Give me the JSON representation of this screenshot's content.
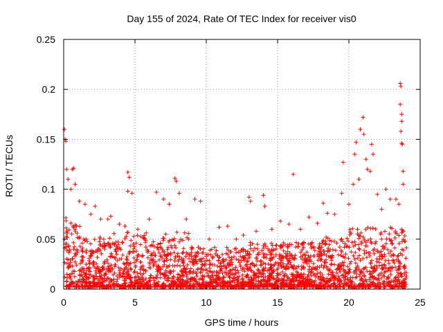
{
  "chart_data": {
    "type": "scatter",
    "title": "Day 155 of 2024, Rate Of TEC Index for receiver vis0",
    "xlabel": "GPS time / hours",
    "ylabel": "ROTI / TECUs",
    "xlim": [
      0,
      25
    ],
    "ylim": [
      0,
      0.25
    ],
    "x_ticks": [
      0,
      5,
      10,
      15,
      20,
      25
    ],
    "x_tick_labels": [
      "0",
      "5",
      "10",
      "15",
      "20",
      "25"
    ],
    "y_ticks": [
      0,
      0.05,
      0.1,
      0.15,
      0.2,
      0.25
    ],
    "y_tick_labels": [
      "0",
      "0.05",
      "0.1",
      "0.15",
      "0.2",
      "0.25"
    ],
    "grid": true,
    "marker": "+",
    "series_color": "#ff0000",
    "series": [
      {
        "name": "ROTI",
        "note": "dense cloud of ~thousands of points mostly below 0.05 TECU/min; representative peaks listed",
        "points": [
          [
            0.05,
            0.16
          ],
          [
            0.1,
            0.15
          ],
          [
            0.15,
            0.148
          ],
          [
            0.2,
            0.12
          ],
          [
            0.3,
            0.11
          ],
          [
            0.5,
            0.1
          ],
          [
            0.6,
            0.12
          ],
          [
            0.7,
            0.121
          ],
          [
            0.8,
            0.105
          ],
          [
            1.1,
            0.088
          ],
          [
            1.5,
            0.085
          ],
          [
            1.9,
            0.075
          ],
          [
            2.2,
            0.083
          ],
          [
            2.6,
            0.07
          ],
          [
            3.1,
            0.07
          ],
          [
            3.3,
            0.073
          ],
          [
            3.9,
            0.065
          ],
          [
            4.3,
            0.063
          ],
          [
            4.5,
            0.117
          ],
          [
            4.6,
            0.112
          ],
          [
            4.5,
            0.098
          ],
          [
            4.8,
            0.096
          ],
          [
            5.2,
            0.06
          ],
          [
            6.0,
            0.07
          ],
          [
            6.5,
            0.097
          ],
          [
            7.0,
            0.09
          ],
          [
            7.4,
            0.085
          ],
          [
            7.8,
            0.111
          ],
          [
            7.9,
            0.108
          ],
          [
            8.1,
            0.096
          ],
          [
            8.6,
            0.07
          ],
          [
            9.2,
            0.09
          ],
          [
            9.6,
            0.088
          ],
          [
            10.2,
            0.05
          ],
          [
            10.9,
            0.062
          ],
          [
            11.5,
            0.063
          ],
          [
            12.1,
            0.05
          ],
          [
            12.6,
            0.054
          ],
          [
            13.0,
            0.092
          ],
          [
            13.1,
            0.088
          ],
          [
            13.5,
            0.058
          ],
          [
            14.0,
            0.094
          ],
          [
            14.1,
            0.083
          ],
          [
            14.6,
            0.06
          ],
          [
            15.2,
            0.068
          ],
          [
            15.8,
            0.065
          ],
          [
            16.1,
            0.115
          ],
          [
            16.6,
            0.06
          ],
          [
            17.2,
            0.072
          ],
          [
            17.8,
            0.066
          ],
          [
            18.2,
            0.086
          ],
          [
            18.5,
            0.076
          ],
          [
            19.0,
            0.075
          ],
          [
            19.5,
            0.096
          ],
          [
            19.6,
            0.127
          ],
          [
            20.0,
            0.085
          ],
          [
            20.3,
            0.105
          ],
          [
            20.4,
            0.135
          ],
          [
            20.5,
            0.147
          ],
          [
            20.7,
            0.11
          ],
          [
            20.8,
            0.16
          ],
          [
            21.0,
            0.172
          ],
          [
            21.05,
            0.155
          ],
          [
            21.2,
            0.13
          ],
          [
            21.3,
            0.12
          ],
          [
            21.5,
            0.118
          ],
          [
            21.6,
            0.145
          ],
          [
            21.7,
            0.135
          ],
          [
            22.0,
            0.095
          ],
          [
            22.3,
            0.08
          ],
          [
            22.6,
            0.1
          ],
          [
            22.9,
            0.09
          ],
          [
            23.3,
            0.09
          ],
          [
            23.5,
            0.085
          ],
          [
            23.6,
            0.206
          ],
          [
            23.65,
            0.203
          ],
          [
            23.6,
            0.185
          ],
          [
            23.7,
            0.175
          ],
          [
            23.7,
            0.168
          ],
          [
            23.65,
            0.158
          ],
          [
            23.7,
            0.146
          ],
          [
            23.75,
            0.145
          ],
          [
            23.8,
            0.118
          ],
          [
            23.8,
            0.105
          ]
        ]
      }
    ]
  }
}
